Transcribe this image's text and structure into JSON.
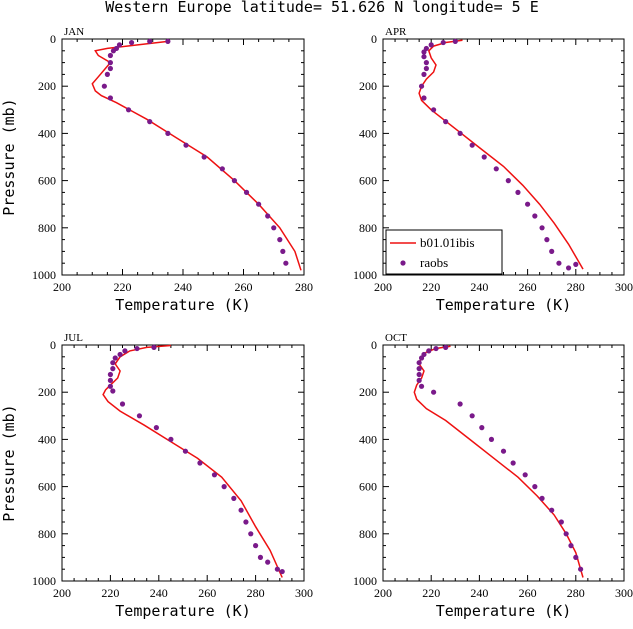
{
  "figure": {
    "title": "Western Europe  latitude= 51.626 N longitude= 5 E"
  },
  "legend": {
    "items": [
      "b01.01ibis",
      "raobs"
    ],
    "colors": {
      "model": "#ee1111",
      "obs": "#7a1a8a"
    }
  },
  "chart_data": [
    {
      "type": "line",
      "panel_label": "JAN",
      "xlabel": "Temperature (K)",
      "ylabel": "Pressure (mb)",
      "xlim": [
        200,
        280
      ],
      "ylim": [
        1000,
        0
      ],
      "xticks": [
        200,
        220,
        240,
        260,
        280
      ],
      "yticks": [
        0,
        200,
        400,
        600,
        800,
        1000
      ],
      "series": [
        {
          "name": "b01.01ibis",
          "style": "line",
          "color": "#ee1111",
          "x": [
            235,
            225,
            215,
            211,
            212,
            216,
            214,
            212,
            210,
            211,
            213,
            218,
            228,
            238,
            248,
            257,
            265,
            272,
            277,
            279
          ],
          "y": [
            10,
            25,
            40,
            50,
            70,
            100,
            130,
            160,
            190,
            220,
            240,
            270,
            340,
            420,
            500,
            600,
            700,
            800,
            900,
            980
          ]
        },
        {
          "name": "raobs",
          "style": "points",
          "color": "#7a1a8a",
          "x": [
            235,
            229,
            223,
            219,
            218,
            217,
            216,
            216,
            216,
            215,
            214,
            216,
            222,
            229,
            235,
            241,
            247,
            253,
            257,
            261,
            265,
            268,
            270,
            272,
            273,
            274
          ],
          "y": [
            10,
            10,
            15,
            25,
            40,
            50,
            70,
            100,
            125,
            150,
            200,
            250,
            300,
            350,
            400,
            450,
            500,
            550,
            600,
            650,
            700,
            750,
            800,
            850,
            900,
            950
          ]
        }
      ]
    },
    {
      "type": "line",
      "panel_label": "APR",
      "xlabel": "Temperature (K)",
      "ylabel": "",
      "xlim": [
        200,
        300
      ],
      "ylim": [
        1000,
        0
      ],
      "xticks": [
        200,
        220,
        240,
        260,
        280,
        300
      ],
      "yticks": [
        0,
        200,
        400,
        600,
        800,
        1000
      ],
      "series": [
        {
          "name": "b01.01ibis",
          "style": "line",
          "color": "#ee1111",
          "x": [
            233,
            226,
            221,
            219,
            220,
            222,
            221,
            218,
            216,
            215,
            216,
            220,
            230,
            240,
            250,
            258,
            265,
            271,
            277,
            283
          ],
          "y": [
            5,
            15,
            30,
            50,
            80,
            110,
            140,
            170,
            200,
            230,
            260,
            300,
            380,
            460,
            540,
            620,
            700,
            780,
            870,
            975
          ]
        },
        {
          "name": "raobs",
          "style": "points",
          "color": "#7a1a8a",
          "x": [
            230,
            225,
            220,
            218,
            217,
            217,
            218,
            218,
            217,
            216,
            217,
            221,
            226,
            232,
            237,
            242,
            247,
            252,
            256,
            260,
            263,
            266,
            268,
            270,
            273,
            277,
            280
          ],
          "y": [
            10,
            15,
            25,
            40,
            55,
            75,
            100,
            125,
            150,
            200,
            250,
            300,
            350,
            400,
            450,
            500,
            550,
            600,
            650,
            700,
            750,
            800,
            850,
            900,
            950,
            970,
            955
          ]
        }
      ]
    },
    {
      "type": "line",
      "panel_label": "JUL",
      "xlabel": "Temperature (K)",
      "ylabel": "Pressure (mb)",
      "xlim": [
        200,
        300
      ],
      "ylim": [
        1000,
        0
      ],
      "xticks": [
        200,
        220,
        240,
        260,
        280,
        300
      ],
      "yticks": [
        0,
        200,
        400,
        600,
        800,
        1000
      ],
      "series": [
        {
          "name": "b01.01ibis",
          "style": "line",
          "color": "#ee1111",
          "x": [
            245,
            235,
            228,
            224,
            222,
            224,
            223,
            220,
            218,
            217,
            219,
            224,
            234,
            245,
            256,
            266,
            274,
            280,
            286,
            291
          ],
          "y": [
            2,
            10,
            25,
            50,
            80,
            110,
            140,
            170,
            190,
            210,
            240,
            280,
            340,
            410,
            480,
            560,
            660,
            770,
            870,
            985
          ]
        },
        {
          "name": "raobs",
          "style": "points",
          "color": "#7a1a8a",
          "x": [
            238,
            231,
            226,
            224,
            222,
            221,
            221,
            220,
            220,
            220,
            221,
            225,
            232,
            239,
            245,
            251,
            257,
            263,
            267,
            271,
            274,
            276,
            278,
            280,
            282,
            285,
            289,
            291
          ],
          "y": [
            10,
            15,
            25,
            40,
            55,
            75,
            100,
            125,
            150,
            175,
            195,
            250,
            300,
            350,
            400,
            450,
            500,
            550,
            600,
            650,
            700,
            750,
            800,
            850,
            900,
            920,
            950,
            960
          ]
        }
      ]
    },
    {
      "type": "line",
      "panel_label": "OCT",
      "xlabel": "Temperature (K)",
      "ylabel": "",
      "xlim": [
        200,
        300
      ],
      "ylim": [
        1000,
        0
      ],
      "xticks": [
        200,
        220,
        240,
        260,
        280,
        300
      ],
      "yticks": [
        0,
        200,
        400,
        600,
        800,
        1000
      ],
      "series": [
        {
          "name": "b01.01ibis",
          "style": "line",
          "color": "#ee1111",
          "x": [
            228,
            222,
            218,
            216,
            215,
            217,
            216,
            214,
            213,
            214,
            218,
            226,
            236,
            246,
            256,
            264,
            271,
            276,
            280,
            283
          ],
          "y": [
            5,
            15,
            30,
            50,
            80,
            110,
            140,
            170,
            200,
            230,
            270,
            320,
            400,
            480,
            560,
            640,
            720,
            800,
            880,
            985
          ]
        },
        {
          "name": "raobs",
          "style": "points",
          "color": "#7a1a8a",
          "x": [
            226,
            222,
            219,
            217,
            216,
            215,
            215,
            215,
            215,
            216,
            221,
            232,
            237,
            241,
            245,
            250,
            254,
            259,
            263,
            266,
            270,
            274,
            276,
            278,
            280,
            282
          ],
          "y": [
            10,
            15,
            25,
            40,
            55,
            75,
            100,
            125,
            150,
            175,
            200,
            250,
            300,
            350,
            400,
            450,
            500,
            550,
            600,
            650,
            700,
            750,
            800,
            850,
            900,
            950
          ]
        }
      ]
    }
  ]
}
